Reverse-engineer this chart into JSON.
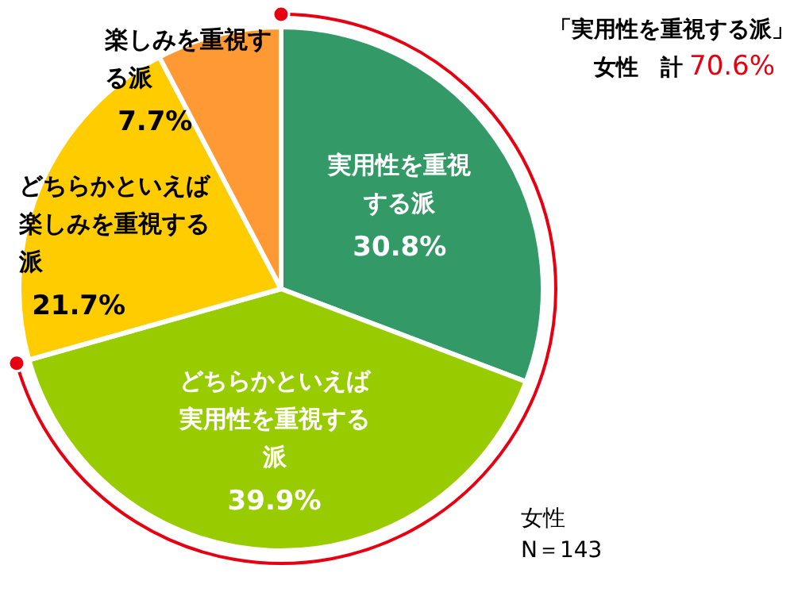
{
  "chart_data": {
    "type": "pie",
    "categories": [
      "実用性を重視する派",
      "どちらかといえば実用性を重視する派",
      "どちらかといえば楽しみを重視する派",
      "楽しみを重視する派"
    ],
    "values": [
      30.8,
      39.9,
      21.7,
      7.7
    ],
    "colors": [
      "#339966",
      "#99cc00",
      "#ffcc00",
      "#ff9933"
    ],
    "value_labels": [
      "30.8%",
      "39.9%",
      "21.7%",
      "7.7%"
    ],
    "annotations": [
      "「実用性を重視する派」",
      "女性　計",
      "70.6%",
      "女性",
      "N＝143"
    ]
  }
}
